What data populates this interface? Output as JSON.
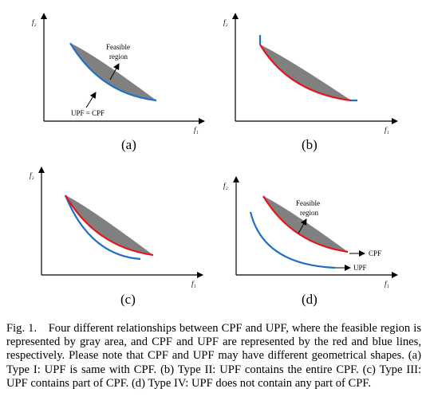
{
  "panels": [
    {
      "id": "a",
      "label": "(a)",
      "x_axis_label": "f₁",
      "y_axis_label": "f₂",
      "annotations": {
        "feasible_region": [
          "Feasible",
          "region"
        ],
        "upf_cpf": "UPF = CPF"
      }
    },
    {
      "id": "b",
      "label": "(b)",
      "x_axis_label": "f₁",
      "y_axis_label": "f₂"
    },
    {
      "id": "c",
      "label": "(c)",
      "x_axis_label": "f₁",
      "y_axis_label": "f₂"
    },
    {
      "id": "d",
      "label": "(d)",
      "x_axis_label": "f₁",
      "y_axis_label": "f₂",
      "annotations": {
        "feasible_region": [
          "Feasible",
          "region"
        ],
        "cpf": "CPF",
        "upf": "UPF"
      }
    }
  ],
  "colors": {
    "feasible": "#808080",
    "cpf": "#e8141c",
    "upf": "#1f6fc6",
    "axis": "#000000"
  },
  "caption": "Fig. 1. Four different relationships between CPF and UPF, where the feasible region is represented by gray area, and CPF and UPF are represented by the red and blue lines, respectively. Please note that CPF and UPF may have different geometrical shapes. (a) Type I: UPF is same with CPF. (b) Type II: UPF contains the entire CPF. (c) Type III: UPF contains part of CPF. (d) Type IV: UPF does not contain any part of CPF."
}
